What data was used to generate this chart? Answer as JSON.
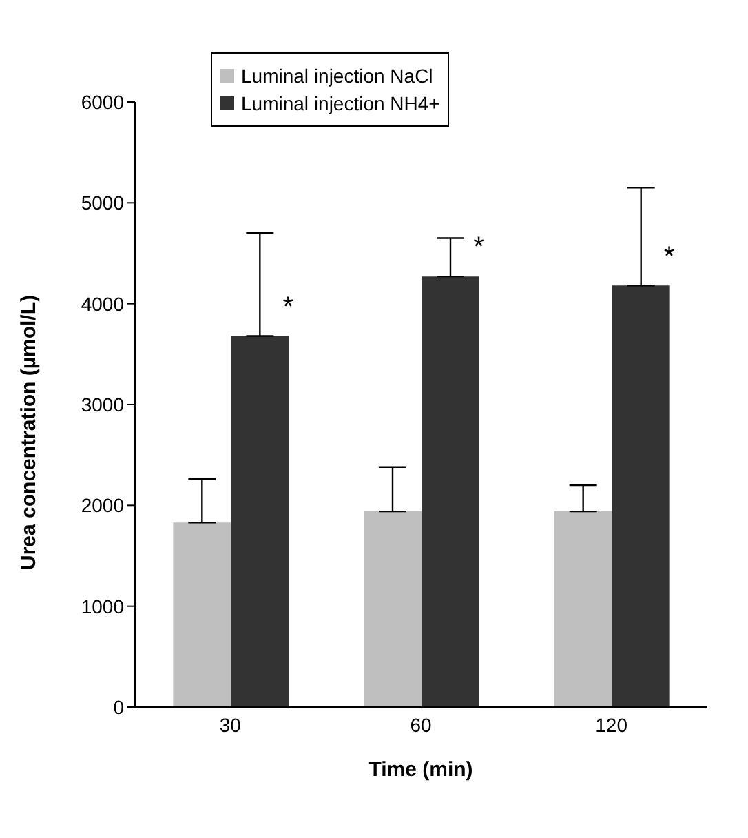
{
  "chart_data": {
    "type": "bar",
    "xlabel": "Time (min)",
    "ylabel": "Urea concentration (µmol/L)",
    "categories": [
      "30",
      "60",
      "120"
    ],
    "series": [
      {
        "name": "Luminal injection NaCl",
        "color": "#bfbfbf",
        "values": [
          1830,
          1940,
          1940
        ],
        "errors": [
          [
            1830,
            2260
          ],
          [
            1940,
            2380
          ],
          [
            1940,
            2200
          ]
        ]
      },
      {
        "name": "Luminal injection NH4+",
        "color": "#333333",
        "values": [
          3680,
          4270,
          4180
        ],
        "errors": [
          [
            3680,
            4700
          ],
          [
            4270,
            4650
          ],
          [
            4180,
            5150
          ]
        ]
      }
    ],
    "ylim": [
      0,
      6000
    ],
    "yticks": [
      0,
      1000,
      2000,
      3000,
      4000,
      5000,
      6000
    ],
    "grid": false,
    "legend": "top left",
    "annotations": [
      "*",
      "*",
      "*"
    ]
  }
}
